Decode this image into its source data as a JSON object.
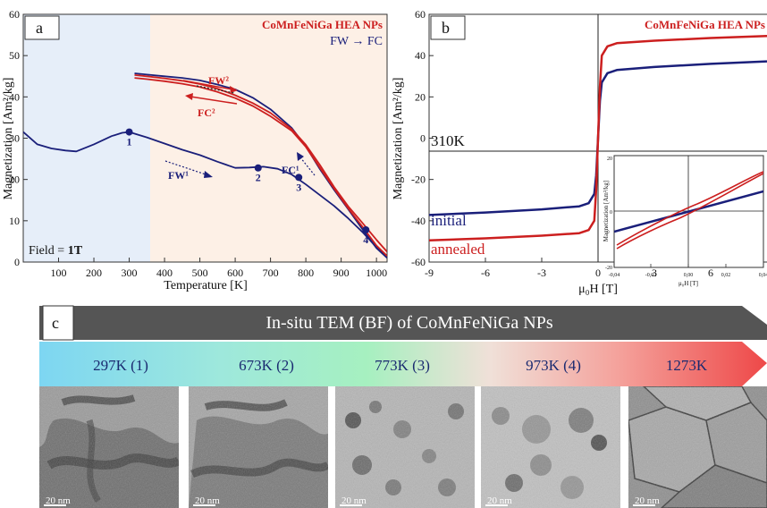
{
  "panel_a": {
    "label": "a",
    "title": "CoMnFeNiGa HEA NPs",
    "subtitle": "FW → FC",
    "field_text": "Field = ",
    "field_value": "1T",
    "xlabel": "Temperature [K]",
    "ylabel": "Magnetization [Am²/kg]",
    "annotations": {
      "fw2": "FW²",
      "fc2": "FC²",
      "fw1": "FW¹",
      "fc1": "FC¹"
    },
    "points": [
      {
        "label": "1",
        "x": 300,
        "y": 31.5
      },
      {
        "label": "2",
        "x": 665,
        "y": 22.8
      },
      {
        "label": "3",
        "x": 780,
        "y": 20.5
      },
      {
        "label": "4",
        "x": 970,
        "y": 7.8
      }
    ],
    "colors": {
      "blue": "#1a1f7a",
      "red": "#cc1f1f",
      "shade_low": "#e6eef9",
      "shade_high": "#fdf0e6"
    }
  },
  "panel_b": {
    "label": "b",
    "title": "CoMnFeNiGa HEA NPs",
    "temperature_label": "310K",
    "xlabel": "μ₀H [T]",
    "ylabel": "Magnetization [Am²/kg]",
    "legend": [
      "initial",
      "annealed"
    ],
    "inset": {
      "xlabel": "μ₀H [T]",
      "ylabel": "Magnetization [Am²/kg]",
      "xticks": [
        "-0,04",
        "-0,02",
        "0,00",
        "0,02",
        "0,04"
      ],
      "yticks": [
        "20",
        "0",
        "-20"
      ]
    }
  },
  "chart_data": [
    {
      "type": "line",
      "panel": "a",
      "title": "CoMnFeNiGa HEA NPs",
      "xlabel": "Temperature [K]",
      "ylabel": "Magnetization [Am²/kg]",
      "xlim": [
        0,
        1030
      ],
      "ylim": [
        0,
        60
      ],
      "xticks": [
        100,
        200,
        300,
        400,
        500,
        600,
        700,
        800,
        900,
        1000
      ],
      "yticks": [
        0,
        10,
        20,
        30,
        40,
        50,
        60
      ],
      "series": [
        {
          "name": "FW¹",
          "color": "#1a1f7a",
          "x": [
            0,
            40,
            80,
            120,
            150,
            200,
            250,
            280,
            300,
            350,
            400,
            450,
            500,
            550,
            600,
            640,
            680,
            720,
            760,
            800,
            840,
            880,
            920,
            960,
            1000,
            1030
          ],
          "y": [
            31.5,
            28.5,
            27.5,
            27,
            26.8,
            28.5,
            30.5,
            31.3,
            31.5,
            30.2,
            28.7,
            27.2,
            25.9,
            24.3,
            22.8,
            22.9,
            23.1,
            22.6,
            21.2,
            18.8,
            16.2,
            13.6,
            10.6,
            7.3,
            3.6,
            1.5
          ]
        },
        {
          "name": "FC¹",
          "color": "#1a1f7a",
          "x": [
            1030,
            1000,
            960,
            920,
            880,
            840,
            800,
            760,
            700,
            650,
            600,
            550,
            500,
            450,
            400,
            350,
            315
          ],
          "y": [
            1,
            3.4,
            8.0,
            12.8,
            17.5,
            22.5,
            28,
            32.5,
            37,
            39.8,
            41.8,
            43,
            44,
            44.6,
            45,
            45.4,
            45.7
          ]
        },
        {
          "name": "FW²",
          "color": "#cc1f1f",
          "x": [
            315,
            350,
            400,
            450,
            500,
            550,
            600,
            650,
            700,
            760,
            800,
            840,
            880,
            920,
            960,
            1000,
            1030
          ],
          "y": [
            45.3,
            45.0,
            44.5,
            43.9,
            43.1,
            42.0,
            40.4,
            38.5,
            36.1,
            32.2,
            28.4,
            23.5,
            18.2,
            13.5,
            9.5,
            5.4,
            2.5
          ]
        },
        {
          "name": "FC²",
          "color": "#cc1f1f",
          "x": [
            1030,
            1000,
            960,
            920,
            880,
            840,
            800,
            760,
            700,
            650,
            600,
            550,
            500,
            450,
            400,
            350,
            315
          ],
          "y": [
            1.5,
            4.0,
            8.6,
            13.0,
            17.8,
            22.8,
            27.9,
            31.8,
            35.3,
            37.8,
            39.7,
            41.2,
            42.4,
            43.2,
            43.8,
            44.3,
            44.6
          ]
        }
      ]
    },
    {
      "type": "line",
      "panel": "b",
      "title": "CoMnFeNiGa HEA NPs",
      "xlabel": "μ₀H [T]",
      "ylabel": "Magnetization [Am²/kg]",
      "xlim": [
        -9,
        9
      ],
      "ylim": [
        -60,
        60
      ],
      "xticks": [
        -9,
        -6,
        -3,
        0,
        3,
        6
      ],
      "yticks": [
        -60,
        -40,
        -20,
        0,
        20,
        40,
        60
      ],
      "series": [
        {
          "name": "initial",
          "color": "#1a1f7a",
          "x": [
            -9,
            -6,
            -3,
            -1,
            -0.5,
            -0.2,
            -0.1,
            0,
            0.1,
            0.2,
            0.5,
            1,
            3,
            6,
            9
          ],
          "y": [
            -37.2,
            -36,
            -34.5,
            -33,
            -31.5,
            -27,
            -18,
            0,
            18,
            27,
            31.5,
            33,
            34.5,
            36,
            37.2
          ]
        },
        {
          "name": "annealed",
          "color": "#cc1f1f",
          "x": [
            -9,
            -6,
            -3,
            -1,
            -0.5,
            -0.2,
            -0.1,
            0,
            0.1,
            0.2,
            0.5,
            1,
            3,
            6,
            9
          ],
          "y": [
            -49.5,
            -48.5,
            -47.2,
            -46,
            -44.5,
            -40,
            -25,
            0,
            25,
            40,
            44.5,
            46,
            47.2,
            48.5,
            49.5
          ]
        }
      ]
    }
  ],
  "panel_c": {
    "label": "c",
    "banner": "In-situ TEM (BF) of CoMnFeNiGa NPs",
    "temperatures": [
      "297K (1)",
      "673K (2)",
      "773K (3)",
      "973K (4)",
      "1273K"
    ],
    "scale_bar": "20 nm"
  }
}
